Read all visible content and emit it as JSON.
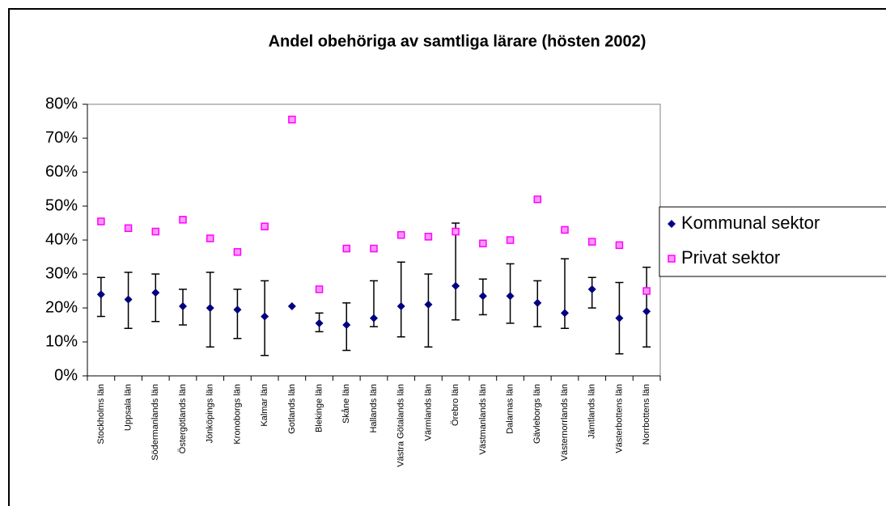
{
  "chart_data": {
    "type": "errorbar-scatter",
    "title": "Andel obehöriga av samtliga lärare (hösten 2002)",
    "categories": [
      "Stockholms län",
      "Uppsala län",
      "Södermanlands län",
      "Östergötlands län",
      "Jönköpings län",
      "Kronoborgs län",
      "Kalmar län",
      "Gotlands län",
      "Blekinge län",
      "Skåne län",
      "Hallands län",
      "Västra Götalands län",
      "Värmlands län",
      "Örebro län",
      "Västmanlands län",
      "Dalarnas län",
      "Gävleborgs län",
      "Västernorrlands län",
      "Jämtlands län",
      "Västerbottens län",
      "Norrbottens län"
    ],
    "series": [
      {
        "name": "Kommunal sektor",
        "color": "#000080",
        "marker": "diamond",
        "values": [
          24,
          22.5,
          24.5,
          20.5,
          20,
          19.5,
          17.5,
          20.5,
          15.5,
          15,
          17,
          20.5,
          21,
          26.5,
          23.5,
          23.5,
          21.5,
          18.5,
          25.5,
          17,
          19
        ],
        "low": [
          17.5,
          14,
          16,
          15,
          8.5,
          11,
          6,
          null,
          13,
          7.5,
          14.5,
          11.5,
          8.5,
          16.5,
          18,
          15.5,
          14.5,
          14,
          20,
          6.5,
          8.5
        ],
        "high": [
          29,
          30.5,
          30,
          25.5,
          30.5,
          25.5,
          28,
          null,
          18.5,
          21.5,
          28,
          33.5,
          30,
          45,
          28.5,
          33,
          28,
          34.5,
          29,
          27.5,
          32
        ]
      },
      {
        "name": "Privat sektor",
        "color": "#ff00ff",
        "marker": "square",
        "values": [
          45.5,
          43.5,
          42.5,
          46,
          40.5,
          36.5,
          44,
          75.5,
          25.5,
          37.5,
          37.5,
          41.5,
          41,
          42.5,
          39,
          40,
          52,
          43,
          39.5,
          38.5,
          25
        ]
      }
    ],
    "ylim": [
      0,
      80
    ],
    "yticks": [
      {
        "value": 0,
        "label": "0%"
      },
      {
        "value": 10,
        "label": "10%"
      },
      {
        "value": 20,
        "label": "20%"
      },
      {
        "value": 30,
        "label": "30%"
      },
      {
        "value": 40,
        "label": "40%"
      },
      {
        "value": 50,
        "label": "50%"
      },
      {
        "value": 60,
        "label": "60%"
      },
      {
        "value": 70,
        "label": "70%"
      },
      {
        "value": 80,
        "label": "80%"
      }
    ],
    "grid": false,
    "legend": "right"
  }
}
